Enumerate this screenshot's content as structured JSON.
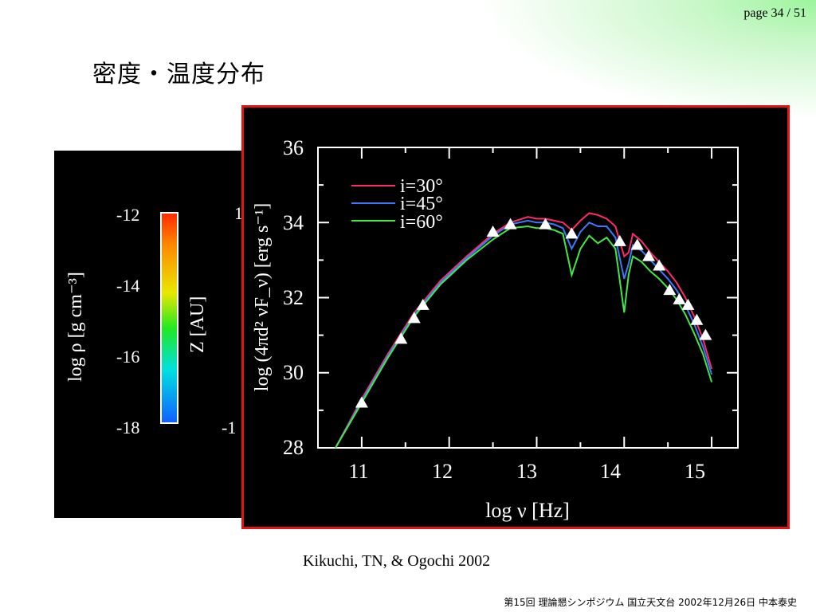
{
  "page_number": "page 34 / 51",
  "slide_title": "密度・温度分布",
  "left_panel": {
    "colorbar_ticks": [
      "-12",
      "-14",
      "-16",
      "-18"
    ],
    "colorbar_label": "log ρ [g cm⁻³]",
    "axis_label": "Z [AU]",
    "clipped_ticks": [
      "1",
      "-1"
    ],
    "colors": {
      "red": "#ff2a00",
      "yellow": "#e8e800",
      "green": "#22e822",
      "cyan": "#00e0e0",
      "blue": "#1060ff"
    }
  },
  "caption": "Kikuchi, TN, & Ogochi 2002",
  "footer": "第15回 理論懇シンポジウム 国立天文台 2002年12月26日 中本泰史",
  "chart_data": {
    "type": "line",
    "title": "",
    "xlabel": "log ν [Hz]",
    "ylabel": "log (4πd² νF_ν) [erg s⁻¹]",
    "xlim": [
      10.5,
      15.3
    ],
    "ylim": [
      28,
      36
    ],
    "x_ticks": [
      "11",
      "12",
      "13",
      "14",
      "15"
    ],
    "y_ticks": [
      "28",
      "30",
      "32",
      "34",
      "36"
    ],
    "legend_position": "top-left",
    "series": [
      {
        "name": "i=30°",
        "color": "#ff2a6a",
        "x": [
          10.7,
          11.0,
          11.3,
          11.6,
          11.9,
          12.2,
          12.5,
          12.7,
          12.9,
          13.0,
          13.1,
          13.2,
          13.3,
          13.4,
          13.5,
          13.6,
          13.7,
          13.8,
          13.9,
          14.0,
          14.05,
          14.1,
          14.2,
          14.3,
          14.4,
          14.5,
          14.6,
          14.7,
          14.8,
          14.9,
          15.0
        ],
        "y": [
          28.0,
          29.3,
          30.5,
          31.6,
          32.45,
          33.1,
          33.7,
          34.0,
          34.15,
          34.1,
          34.1,
          34.05,
          34.0,
          33.8,
          34.05,
          34.25,
          34.2,
          34.1,
          33.9,
          33.1,
          33.2,
          33.7,
          33.5,
          33.2,
          32.95,
          32.7,
          32.4,
          32.0,
          31.5,
          30.9,
          30.1
        ]
      },
      {
        "name": "i=45°",
        "color": "#3a7aff",
        "x": [
          10.7,
          11.0,
          11.3,
          11.6,
          11.9,
          12.2,
          12.5,
          12.7,
          12.9,
          13.0,
          13.1,
          13.2,
          13.3,
          13.4,
          13.5,
          13.6,
          13.7,
          13.8,
          13.9,
          14.0,
          14.05,
          14.1,
          14.2,
          14.3,
          14.4,
          14.5,
          14.6,
          14.7,
          14.8,
          14.9,
          15.0
        ],
        "y": [
          28.0,
          29.25,
          30.45,
          31.55,
          32.4,
          33.05,
          33.65,
          33.95,
          34.05,
          34.0,
          34.0,
          33.95,
          33.85,
          33.3,
          33.75,
          34.0,
          33.9,
          33.9,
          33.6,
          32.5,
          32.9,
          33.4,
          33.25,
          33.0,
          32.75,
          32.5,
          32.2,
          31.8,
          31.3,
          30.7,
          29.95
        ]
      },
      {
        "name": "i=60°",
        "color": "#44e844",
        "x": [
          10.7,
          11.0,
          11.3,
          11.6,
          11.9,
          12.2,
          12.5,
          12.7,
          12.9,
          13.0,
          13.1,
          13.2,
          13.3,
          13.4,
          13.5,
          13.6,
          13.7,
          13.8,
          13.9,
          14.0,
          14.05,
          14.1,
          14.2,
          14.3,
          14.4,
          14.5,
          14.6,
          14.7,
          14.8,
          14.9,
          15.0
        ],
        "y": [
          28.0,
          29.2,
          30.4,
          31.5,
          32.35,
          33.0,
          33.55,
          33.85,
          33.9,
          33.85,
          33.85,
          33.8,
          33.7,
          32.6,
          33.3,
          33.65,
          33.45,
          33.6,
          33.3,
          31.6,
          32.6,
          33.1,
          32.95,
          32.7,
          32.5,
          32.25,
          31.95,
          31.55,
          31.05,
          30.5,
          29.75
        ]
      }
    ],
    "observations": {
      "x": [
        11.0,
        11.45,
        11.6,
        11.7,
        12.5,
        12.7,
        13.1,
        13.4,
        13.95,
        14.15,
        14.28,
        14.4,
        14.52,
        14.63,
        14.73,
        14.83,
        14.93
      ],
      "y": [
        29.2,
        30.9,
        31.45,
        31.8,
        33.75,
        33.95,
        33.95,
        33.7,
        33.5,
        33.4,
        33.1,
        32.85,
        32.2,
        31.95,
        31.8,
        31.4,
        31.0
      ]
    }
  }
}
